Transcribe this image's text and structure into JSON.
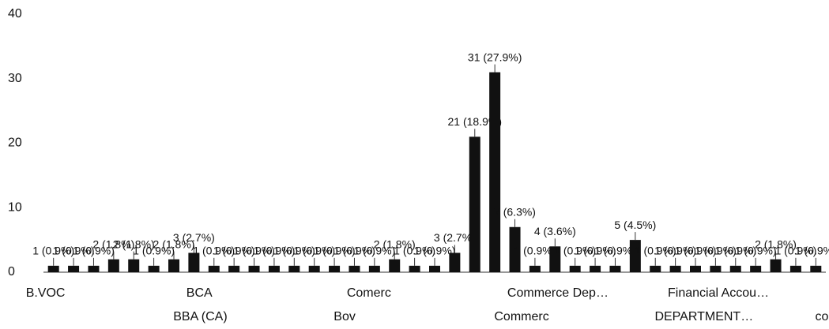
{
  "chart_data": {
    "type": "bar",
    "categories": [
      "B.VOC",
      null,
      null,
      null,
      "BBA (CA)",
      null,
      null,
      null,
      "BCA",
      null,
      null,
      null,
      "Bov",
      null,
      null,
      null,
      "Comerc",
      null,
      null,
      null,
      "Commerc",
      null,
      null,
      null,
      "Commerce Dep…",
      null,
      null,
      null,
      "DEPARTMENT…",
      null,
      null,
      null,
      "Financial Accou…",
      null,
      null,
      null,
      "commerce",
      null,
      null
    ],
    "values": [
      1,
      1,
      1,
      2,
      2,
      1,
      2,
      3,
      1,
      1,
      1,
      1,
      1,
      1,
      1,
      1,
      1,
      2,
      1,
      1,
      3,
      21,
      31,
      7,
      1,
      4,
      1,
      1,
      1,
      5,
      1,
      1,
      1,
      1,
      1,
      1,
      2,
      1,
      1
    ],
    "value_labels": [
      "1 (0.9%)",
      "1 (0.9%)",
      "1 (0.9%)",
      "2 (1.8%)",
      "2 (1.8%)",
      "1 (0.9%)",
      "2 (1.8%)",
      "3 (2.7%)",
      "1 (0.9%)",
      "1 (0.9%)",
      "1 (0.9%)",
      "1 (0.9%)",
      "1 (0.9%)",
      "1 (0.9%)",
      "1 (0.9%)",
      "1 (0.9%)",
      "1 (0.9%)",
      "2 (1.8%)",
      "1 (0.9%)",
      "1 (0.9%)",
      "3 (2.7%)",
      "21 (18.9%)",
      "31 (27.9%)",
      "7 (6.3%)",
      "1 (0.9%)",
      "4 (3.6%)",
      "1 (0.9%)",
      "1 (0.9%)",
      "1 (0.9%)",
      "5 (4.5%)",
      "1 (0.9%)",
      "1 (0.9%)",
      "1 (0.9%)",
      "1 (0.9%)",
      "1 (0.9%)",
      "1 (0.9%)",
      "2 (1.8%)",
      "1 (0.9%)",
      "1 (0.9%)"
    ],
    "color": "#111111",
    "ylim": [
      0,
      40
    ],
    "yticks": [
      0,
      10,
      20,
      30,
      40
    ],
    "grid": false
  }
}
